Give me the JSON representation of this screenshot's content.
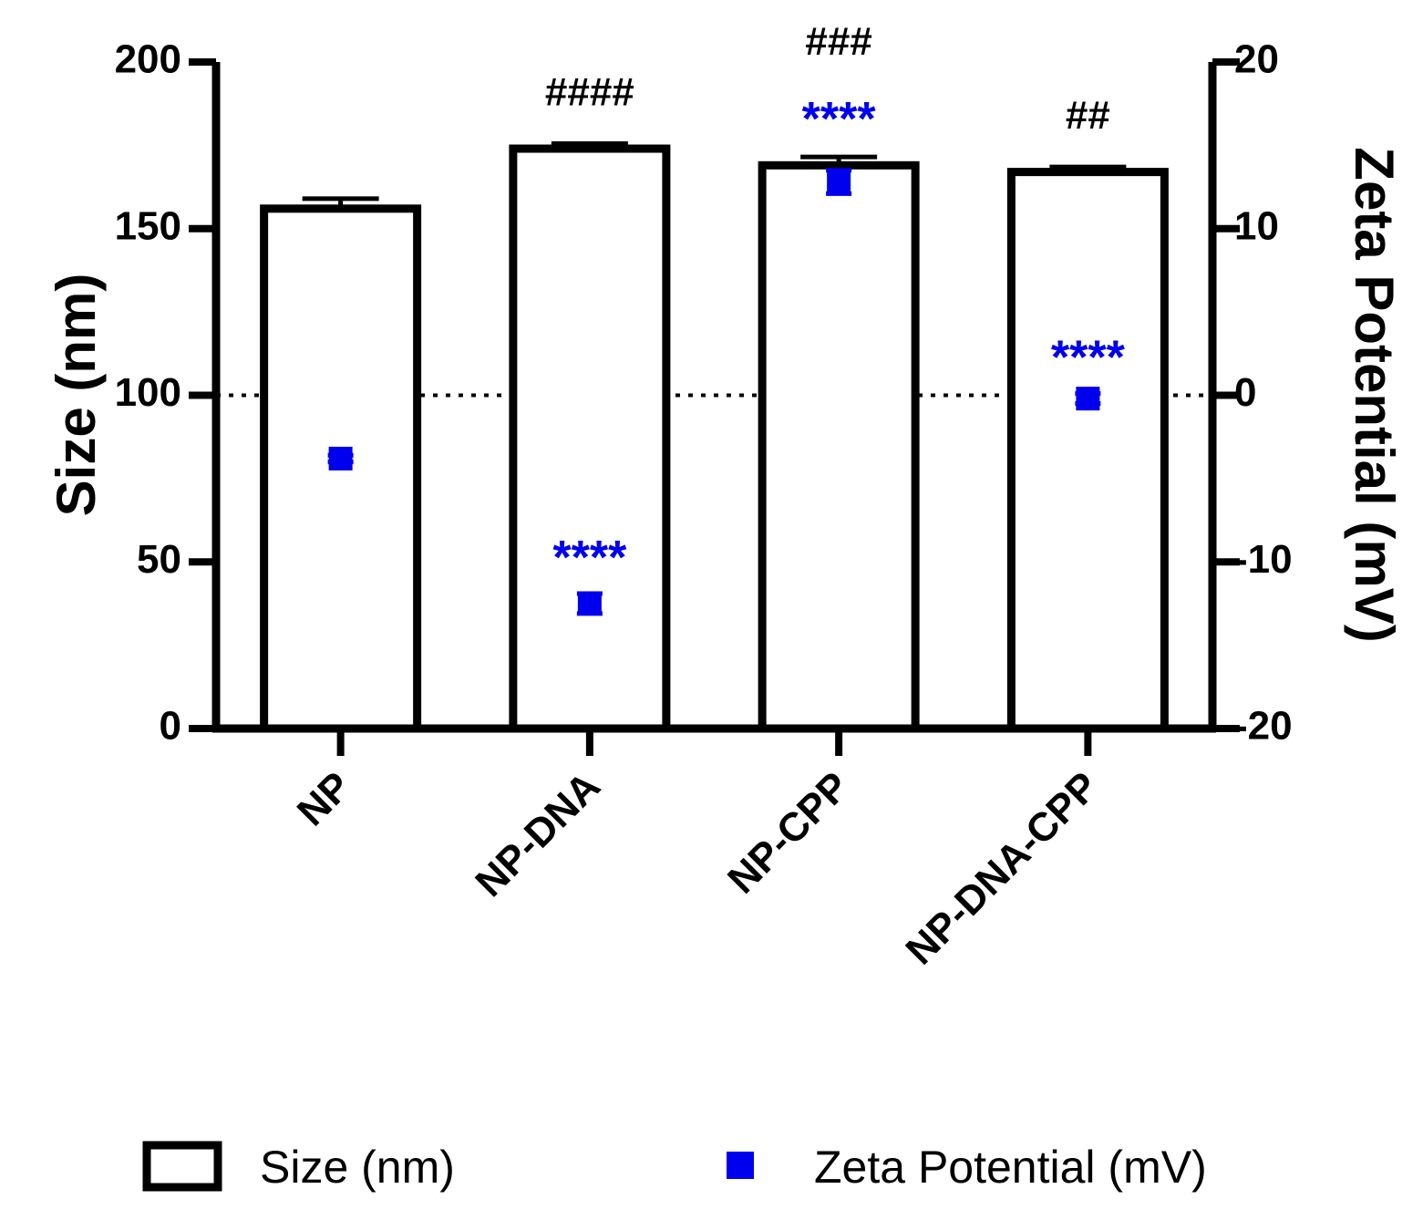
{
  "chart_data": {
    "type": "bar",
    "categories": [
      "NP",
      "NP-DNA",
      "NP-CPP",
      "NP-DNA-CPP"
    ],
    "series": [
      {
        "name": "Size (nm)",
        "type": "bar",
        "axis": "left",
        "values": [
          156,
          174,
          169,
          167
        ],
        "errors": [
          3,
          1.5,
          2.5,
          1.5
        ],
        "annotations": [
          "",
          "####",
          "###",
          "##"
        ]
      },
      {
        "name": "Zeta Potential (mV)",
        "type": "scatter",
        "axis": "right",
        "values": [
          -3.8,
          -12.5,
          12.8,
          -0.2
        ],
        "errors": [
          0.2,
          0.6,
          0.7,
          0.3
        ],
        "annotations": [
          "",
          "****",
          "****",
          "****"
        ]
      }
    ],
    "y_left": {
      "label": "Size (nm)",
      "lim": [
        0,
        200
      ],
      "ticks": [
        0,
        50,
        100,
        150,
        200
      ]
    },
    "y_right": {
      "label": "Zeta Potential (mV)",
      "lim": [
        -20,
        20
      ],
      "ticks": [
        -20,
        -10,
        0,
        10,
        20
      ],
      "tick_labels": [
        "-20",
        "-10",
        "0",
        "10",
        "20"
      ]
    },
    "reference_line": {
      "axis": "right",
      "value": 0,
      "style": "dotted"
    },
    "legend": {
      "position": "bottom",
      "items": [
        "Size (nm)",
        "Zeta Potential (mV)"
      ]
    },
    "colors": {
      "bar_fill": "#ffffff",
      "bar_stroke": "#000000",
      "zeta": "#0000ee"
    },
    "grid": false
  }
}
